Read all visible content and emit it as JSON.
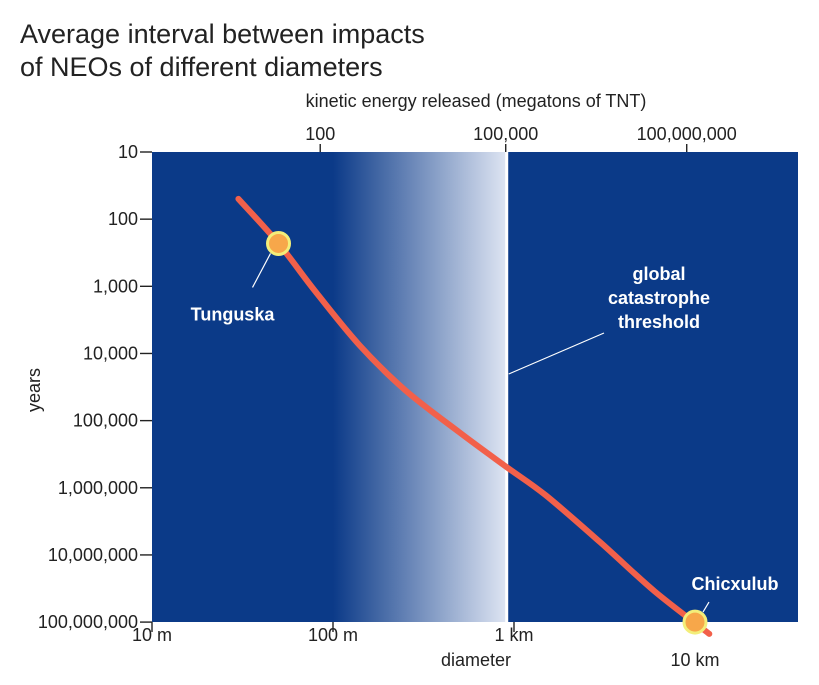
{
  "title_lines": [
    "Average interval between impacts",
    "of NEOs of different diameters"
  ],
  "colors": {
    "plot_bg": "#0b3a88",
    "band_light": "#dde4f2",
    "curve": "#f2604a",
    "marker_fill": "#f7a74a",
    "marker_stroke": "#f3ee7a",
    "threshold_line": "#ffffff",
    "text_on_plot": "#ffffff",
    "text": "#222222"
  },
  "chart_data": {
    "type": "line",
    "title": "Average interval between impacts of NEOs of different diameters",
    "xlabel": "diameter",
    "x2label": "kinetic energy released (megatons of TNT)",
    "ylabel": "years",
    "x_scale": "log",
    "y_scale": "log",
    "y_inverted": true,
    "xlim_m": [
      10,
      40000
    ],
    "ylim_years": [
      10,
      100000000
    ],
    "x_ticks": [
      {
        "value_m": 10,
        "label": "10 m"
      },
      {
        "value_m": 100,
        "label": "100 m"
      },
      {
        "value_m": 1000,
        "label": "1 km"
      },
      {
        "value_m": 10000,
        "label": "10 km"
      }
    ],
    "x2_ticks": [
      {
        "value_m": 85,
        "label": "100"
      },
      {
        "value_m": 900,
        "label": "100,000"
      },
      {
        "value_m": 9000,
        "label": "100,000,000"
      }
    ],
    "y_ticks": [
      {
        "value": 10,
        "label": "10"
      },
      {
        "value": 100,
        "label": "100"
      },
      {
        "value": 1000,
        "label": "1,000"
      },
      {
        "value": 10000,
        "label": "10,000"
      },
      {
        "value": 100000,
        "label": "100,000"
      },
      {
        "value": 1000000,
        "label": "1,000,000"
      },
      {
        "value": 10000000,
        "label": "10,000,000"
      },
      {
        "value": 100000000,
        "label": "100,000,000"
      }
    ],
    "series": [
      {
        "x_m": [
          30,
          50,
          80,
          140,
          250,
          500,
          900,
          1500,
          3000,
          6000,
          12000
        ],
        "y_years": [
          50,
          230,
          1200,
          7500,
          35000,
          150000,
          480000,
          1300000,
          6500000,
          35000000,
          150000000
        ]
      }
    ],
    "shaded_band_m": [
      100,
      900
    ],
    "threshold": {
      "x_m": 900,
      "label_lines": [
        "global",
        "catastrophe",
        "threshold"
      ]
    },
    "annotations": [
      {
        "label": "Tunguska",
        "x_m": 50,
        "y_years": 230
      },
      {
        "label": "Chicxulub",
        "x_m": 10000,
        "y_years": 100000000
      }
    ]
  }
}
